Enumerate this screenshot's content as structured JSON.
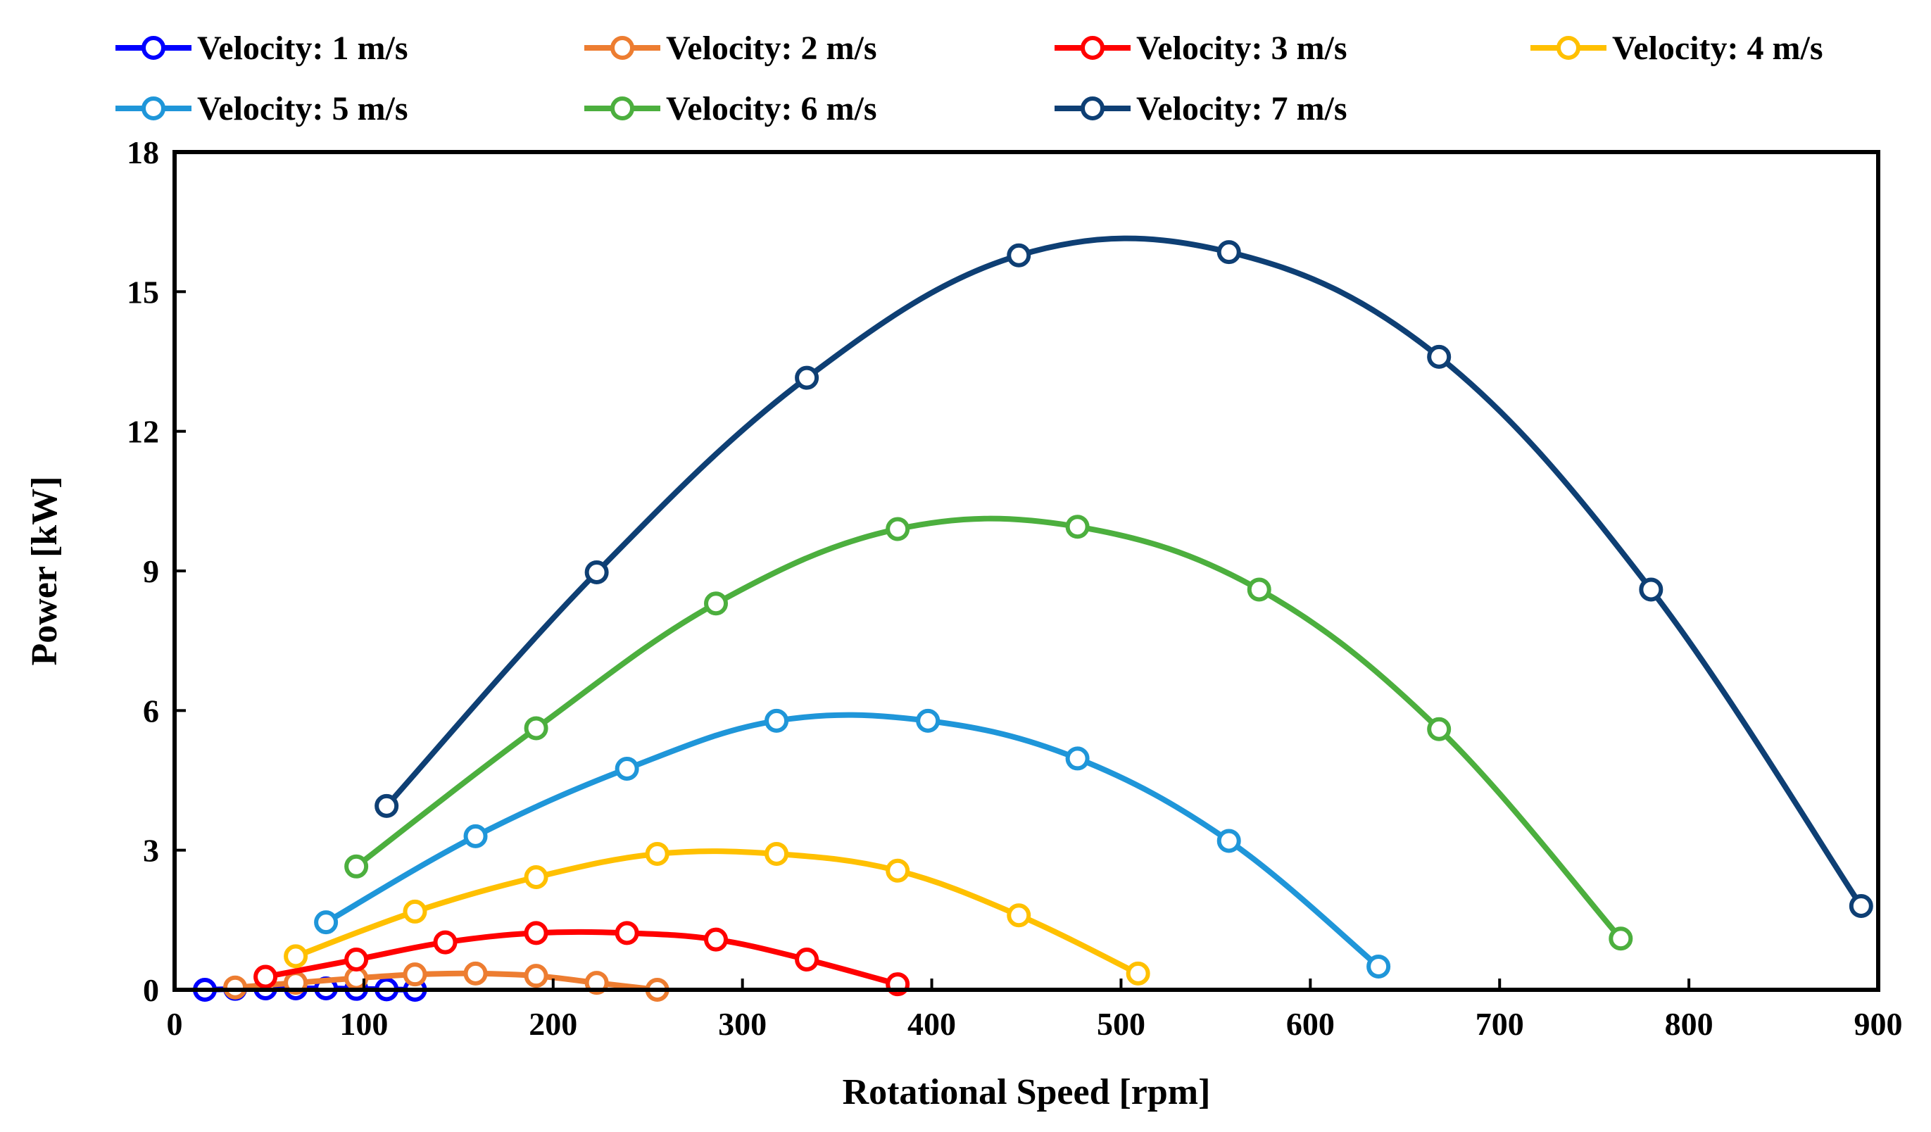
{
  "chart_data": {
    "type": "line",
    "title": "",
    "xlabel": "Rotational Speed [rpm]",
    "ylabel": "Power [kW]",
    "xlim": [
      0,
      900
    ],
    "ylim": [
      0,
      18
    ],
    "xticks": [
      0,
      100,
      200,
      300,
      400,
      500,
      600,
      700,
      800,
      900
    ],
    "yticks": [
      0,
      3,
      6,
      9,
      12,
      15,
      18
    ],
    "grid": false,
    "legend_position": "top",
    "series": [
      {
        "name": "Velocity: 1 m/s",
        "color": "#0000FF",
        "x": [
          16,
          32,
          48,
          64,
          80,
          96,
          112,
          127
        ],
        "y": [
          0.0,
          0.02,
          0.03,
          0.03,
          0.03,
          0.02,
          0.01,
          0.0
        ]
      },
      {
        "name": "Velocity: 2 m/s",
        "color": "#ED7D31",
        "x": [
          32,
          64,
          96,
          127,
          159,
          191,
          223,
          255
        ],
        "y": [
          0.05,
          0.15,
          0.25,
          0.33,
          0.35,
          0.3,
          0.15,
          0.0
        ]
      },
      {
        "name": "Velocity: 3 m/s",
        "color": "#FF0000",
        "x": [
          48,
          96,
          143,
          191,
          239,
          286,
          334,
          382
        ],
        "y": [
          0.28,
          0.65,
          1.02,
          1.22,
          1.22,
          1.08,
          0.65,
          0.12
        ]
      },
      {
        "name": "Velocity: 4 m/s",
        "color": "#FFC000",
        "x": [
          64,
          127,
          191,
          255,
          318,
          382,
          446,
          509
        ],
        "y": [
          0.72,
          1.68,
          2.42,
          2.92,
          2.92,
          2.56,
          1.6,
          0.35
        ]
      },
      {
        "name": "Velocity: 5 m/s",
        "color": "#1F96D9",
        "x": [
          80,
          159,
          239,
          318,
          398,
          477,
          557,
          636
        ],
        "y": [
          1.45,
          3.3,
          4.75,
          5.78,
          5.78,
          4.97,
          3.2,
          0.5
        ]
      },
      {
        "name": "Velocity: 6 m/s",
        "color": "#4CAF3E",
        "x": [
          96,
          191,
          286,
          382,
          477,
          573,
          668,
          764
        ],
        "y": [
          2.65,
          5.62,
          8.3,
          9.9,
          9.95,
          8.6,
          5.6,
          1.1
        ]
      },
      {
        "name": "Velocity: 7 m/s",
        "color": "#0E3F74",
        "x": [
          112,
          223,
          334,
          446,
          557,
          668,
          780,
          891
        ],
        "y": [
          3.95,
          8.97,
          13.15,
          15.78,
          15.85,
          13.6,
          8.6,
          1.8
        ]
      }
    ]
  }
}
